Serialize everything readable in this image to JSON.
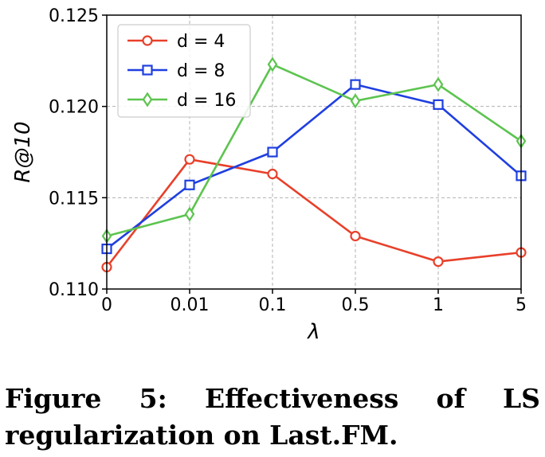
{
  "chart_data": {
    "type": "line",
    "categories": [
      "0",
      "0.01",
      "0.1",
      "0.5",
      "1",
      "5"
    ],
    "series": [
      {
        "name": "d = 4",
        "color": "#e8402a",
        "marker": "circle",
        "values": [
          0.1112,
          0.1171,
          0.1163,
          0.1129,
          0.1115,
          0.112
        ]
      },
      {
        "name": "d = 8",
        "color": "#1f3fe0",
        "marker": "square",
        "values": [
          0.1122,
          0.1157,
          0.1175,
          0.1212,
          0.1201,
          0.1162
        ]
      },
      {
        "name": "d = 16",
        "color": "#5cc44f",
        "marker": "diamond",
        "values": [
          0.1129,
          0.1141,
          0.1223,
          0.1203,
          0.1212,
          0.1181
        ]
      }
    ],
    "xlabel": "λ",
    "ylabel": "R@10",
    "ylim": [
      0.11,
      0.125
    ],
    "yticks": [
      "0.110",
      "0.115",
      "0.120",
      "0.125"
    ],
    "grid": true,
    "legend_position": "top-left"
  },
  "caption": "Figure 5: Effectiveness of LS regularization on Last.FM."
}
